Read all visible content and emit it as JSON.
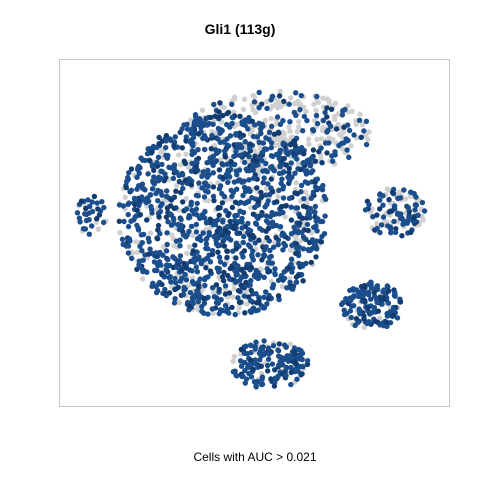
{
  "chart_data": {
    "type": "scatter",
    "title": "Gli1 (113g)",
    "xlabel": "Cells with AUC > 0.021",
    "ylabel": "",
    "axes_ticks": "none",
    "grid": false,
    "legend": "none",
    "colors": {
      "active": "#1b4e8c",
      "active_dark": "#123c70",
      "inactive": "#d0d0d0",
      "frame": "#c8c8c8"
    },
    "clusters": [
      {
        "name": "main",
        "cx": 0.42,
        "cy": 0.55,
        "rx": 0.27,
        "ry": 0.29,
        "n": 1400,
        "active_frac": 0.82
      },
      {
        "name": "upper",
        "cx": 0.56,
        "cy": 0.79,
        "rx": 0.24,
        "ry": 0.12,
        "n": 360,
        "active_frac": 0.45
      },
      {
        "name": "bottom",
        "cx": 0.54,
        "cy": 0.12,
        "rx": 0.1,
        "ry": 0.07,
        "n": 170,
        "active_frac": 0.85
      },
      {
        "name": "right-upper",
        "cx": 0.86,
        "cy": 0.56,
        "rx": 0.08,
        "ry": 0.07,
        "n": 120,
        "active_frac": 0.6
      },
      {
        "name": "right-lower",
        "cx": 0.8,
        "cy": 0.29,
        "rx": 0.08,
        "ry": 0.07,
        "n": 150,
        "active_frac": 0.85
      },
      {
        "name": "left-edge",
        "cx": 0.08,
        "cy": 0.55,
        "rx": 0.04,
        "ry": 0.06,
        "n": 40,
        "active_frac": 0.7
      }
    ]
  }
}
